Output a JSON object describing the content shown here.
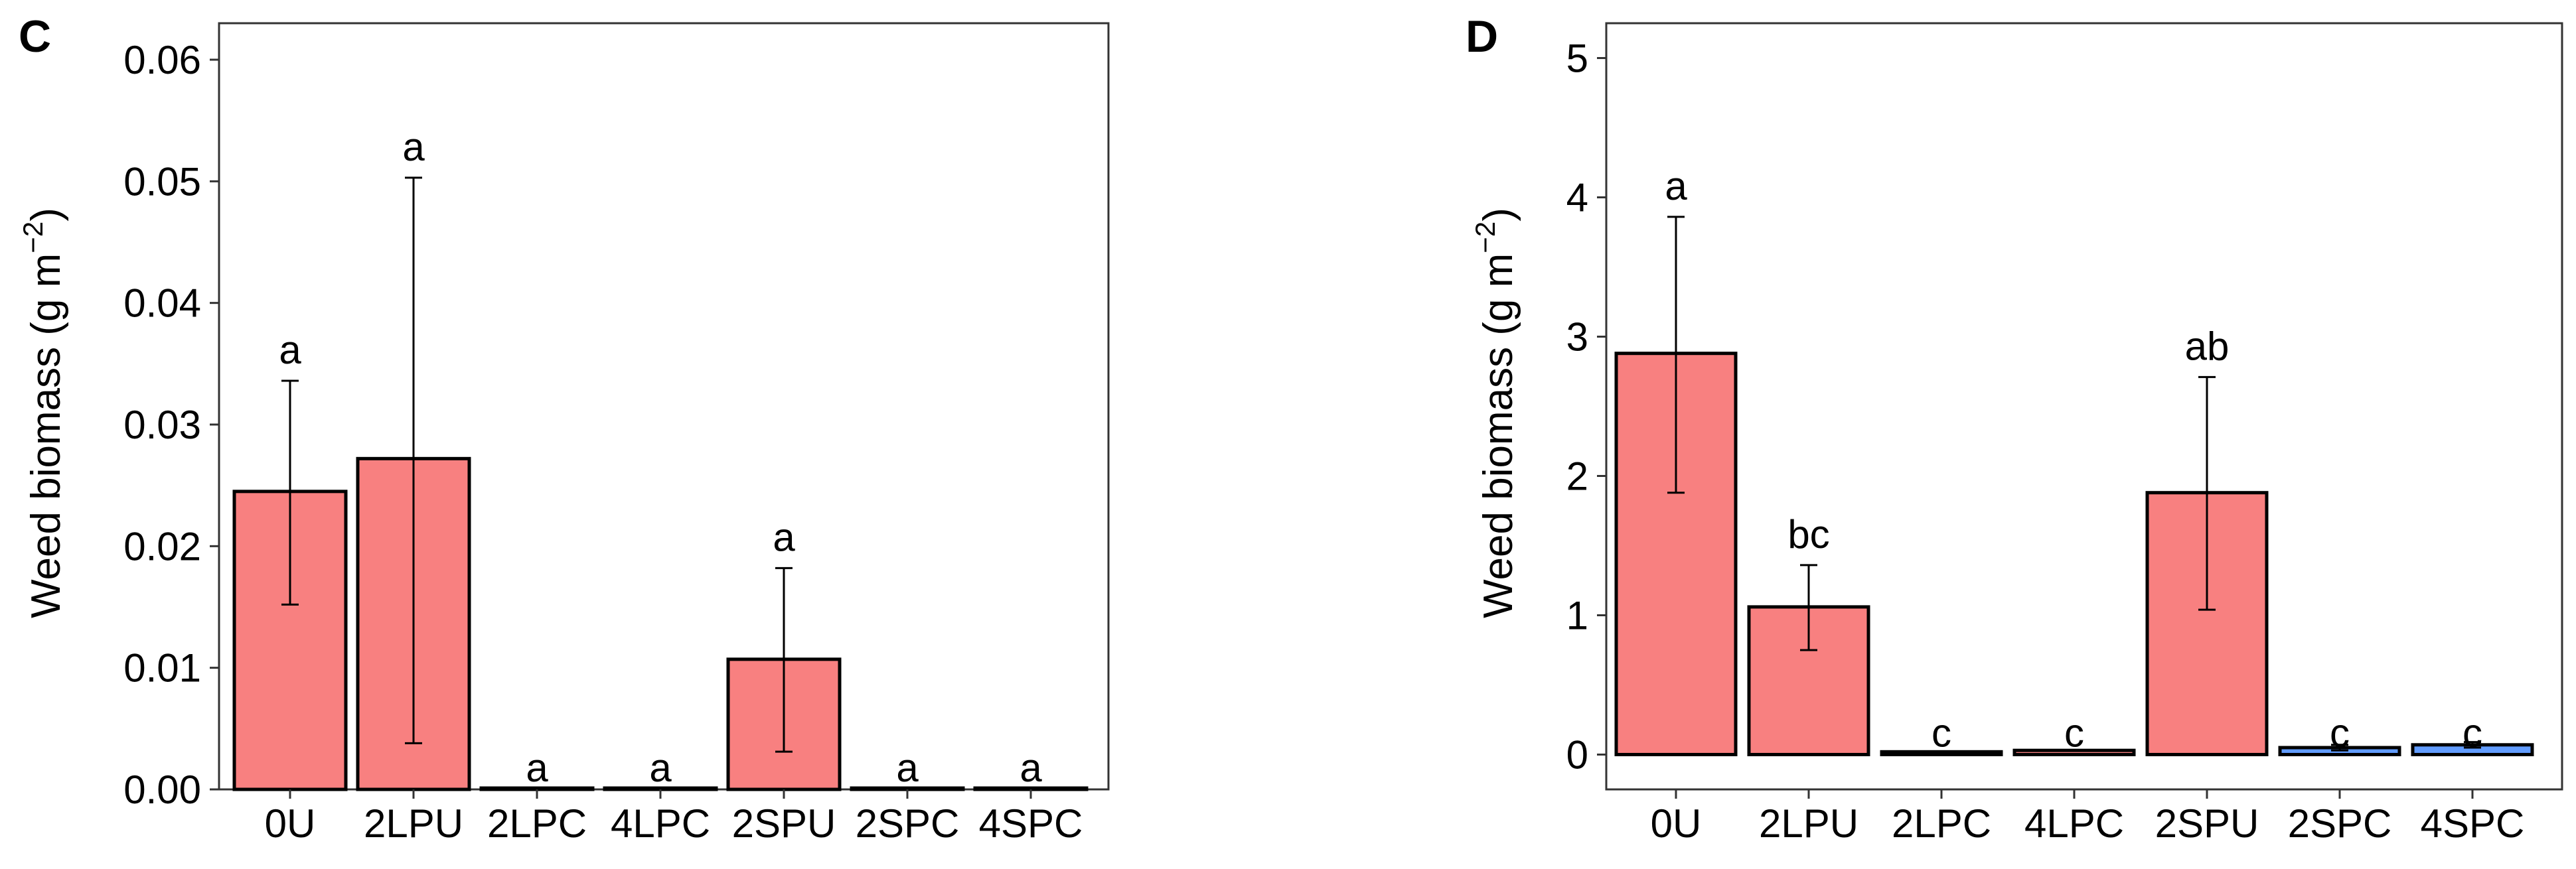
{
  "chart_data": [
    {
      "panel": "C",
      "type": "bar",
      "title": "",
      "xlabel": "",
      "ylabel": "Weed biomass (g m",
      "ylabel_sup": "−2",
      "ylabel_close": ")",
      "ylim": [
        0,
        0.063
      ],
      "yticks": [
        0,
        0.01,
        0.02,
        0.03,
        0.04,
        0.05,
        0.06
      ],
      "ytick_labels": [
        "0.00",
        "0.01",
        "0.02",
        "0.03",
        "0.04",
        "0.05",
        "0.06"
      ],
      "categories": [
        "0U",
        "2LPU",
        "2LPC",
        "4LPC",
        "2SPU",
        "2SPC",
        "4SPC"
      ],
      "values": [
        0.0245,
        0.0272,
        0.0001,
        0.0001,
        0.0107,
        0.0001,
        0.0001
      ],
      "err_low": [
        0.0152,
        0.0038,
        0.0001,
        0.0001,
        0.0031,
        0.0001,
        0.0001
      ],
      "err_high": [
        0.0336,
        0.0503,
        0.0001,
        0.0001,
        0.0182,
        0.0001,
        0.0001
      ],
      "show_err": [
        true,
        true,
        false,
        false,
        true,
        false,
        false
      ],
      "letters": [
        "a",
        "a",
        "a",
        "a",
        "a",
        "a",
        "a"
      ],
      "colors": [
        "#f88080",
        "#f88080",
        "#f88080",
        "#f88080",
        "#f88080",
        "#f88080",
        "#f88080"
      ]
    },
    {
      "panel": "D",
      "type": "bar",
      "title": "",
      "xlabel": "",
      "ylabel": "Weed biomass (g m",
      "ylabel_sup": "−2",
      "ylabel_close": ")",
      "ylim": [
        -0.25,
        5.25
      ],
      "yticks": [
        0,
        1,
        2,
        3,
        4,
        5
      ],
      "ytick_labels": [
        "0",
        "1",
        "2",
        "3",
        "4",
        "5"
      ],
      "categories": [
        "0U",
        "2LPU",
        "2LPC",
        "4LPC",
        "2SPU",
        "2SPC",
        "4SPC"
      ],
      "values": [
        2.88,
        1.06,
        0.02,
        0.03,
        1.88,
        0.05,
        0.07
      ],
      "err_low": [
        1.88,
        0.75,
        0.02,
        0.03,
        1.04,
        0.03,
        0.05
      ],
      "err_high": [
        3.86,
        1.36,
        0.02,
        0.03,
        2.71,
        0.07,
        0.09
      ],
      "show_err": [
        true,
        true,
        false,
        false,
        true,
        true,
        true
      ],
      "letters": [
        "a",
        "bc",
        "c",
        "c",
        "ab",
        "c",
        "c"
      ],
      "colors": [
        "#f88080",
        "#f88080",
        "#f88080",
        "#f88080",
        "#f88080",
        "#619cff",
        "#619cff"
      ]
    }
  ]
}
